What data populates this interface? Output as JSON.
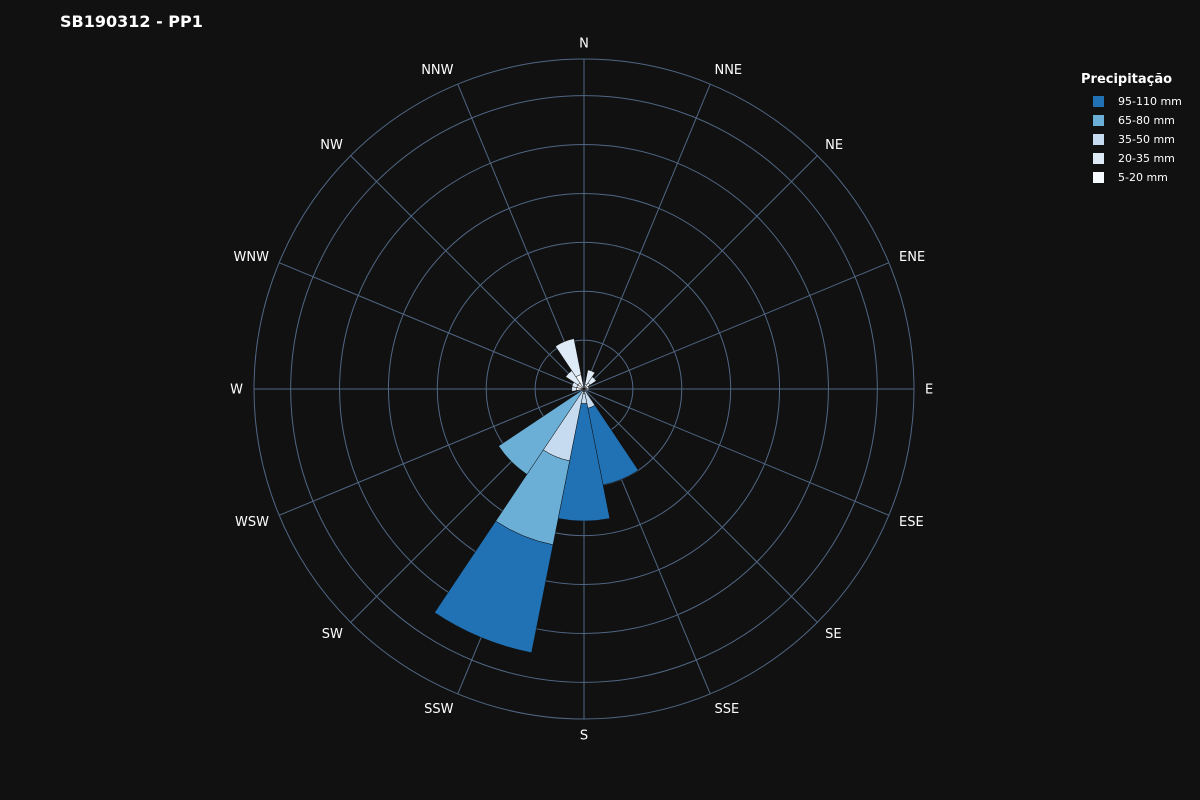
{
  "chart_data": {
    "type": "barpolar",
    "title": "SB190312 - PP1",
    "legend_title": "Precipitação",
    "directions": [
      "N",
      "NNE",
      "NE",
      "ENE",
      "E",
      "ESE",
      "SE",
      "SSE",
      "S",
      "SSW",
      "SW",
      "WSW",
      "W",
      "WNW",
      "NW",
      "NNW"
    ],
    "series": [
      {
        "name": "5-20 mm",
        "color": "#f7fbff",
        "values": [
          1,
          2,
          3,
          2,
          2,
          0,
          0,
          0,
          1,
          1,
          1,
          1,
          3,
          3,
          3,
          6
        ]
      },
      {
        "name": "20-35 mm",
        "color": "#deebf7",
        "values": [
          0,
          6,
          3,
          0,
          0,
          0,
          0,
          1,
          1,
          0,
          0,
          0,
          2,
          2,
          6,
          15
        ]
      },
      {
        "name": "35-50 mm",
        "color": "#c6dbef",
        "values": [
          0,
          0,
          0,
          0,
          0,
          0,
          0,
          7,
          4,
          29,
          0,
          0,
          0,
          0,
          0,
          0
        ]
      },
      {
        "name": "65-80 mm",
        "color": "#6baed6",
        "values": [
          0,
          0,
          0,
          0,
          0,
          0,
          0,
          0,
          0,
          35,
          41,
          0,
          0,
          0,
          0,
          0
        ]
      },
      {
        "name": "95-110 mm",
        "color": "#2171b5",
        "values": [
          0,
          0,
          0,
          0,
          0,
          0,
          0,
          32,
          48,
          45,
          0,
          0,
          0,
          0,
          0,
          0
        ]
      }
    ],
    "legend_order": [
      "95-110 mm",
      "65-80 mm",
      "35-50 mm",
      "20-35 mm",
      "5-20 mm"
    ],
    "radial_range": [
      0,
      135
    ],
    "radial_grid_step": 20,
    "grid": true,
    "legend_position": "top-right",
    "rotation": "clockwise from north"
  }
}
